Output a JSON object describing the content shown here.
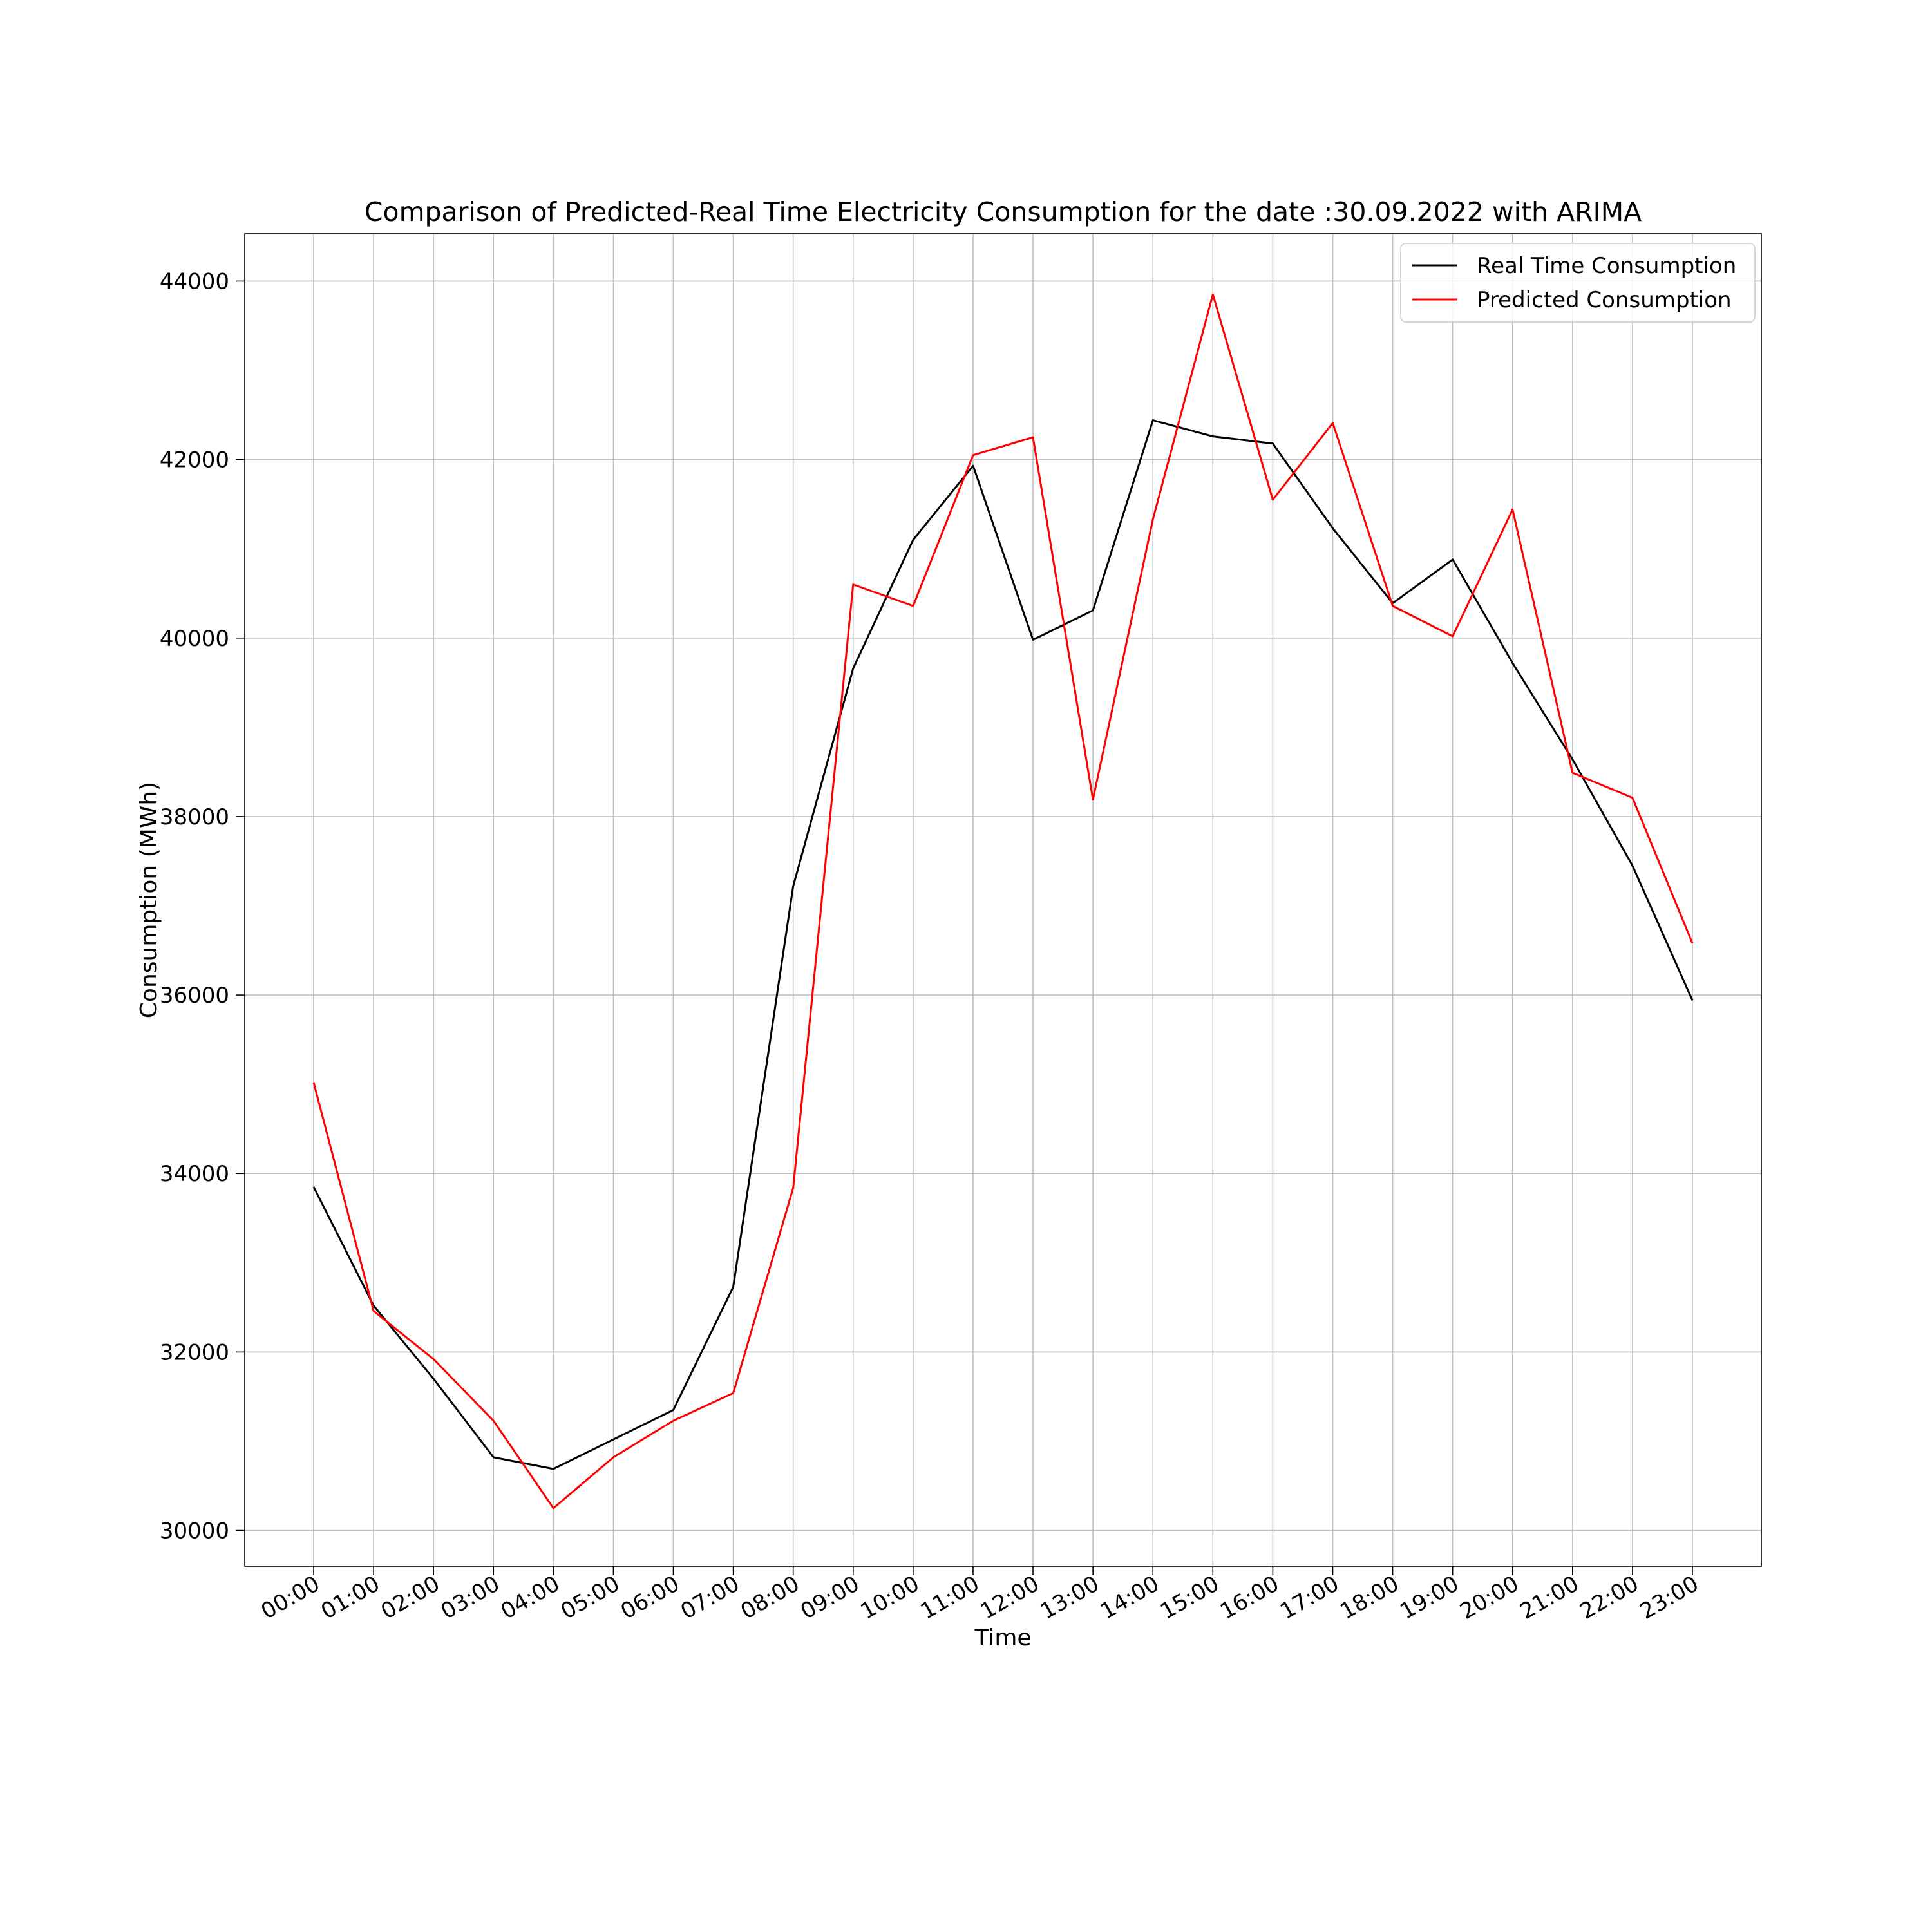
{
  "chart_data": {
    "type": "line",
    "title": "Comparison of Predicted-Real Time Electricity Consumption for the date :30.09.2022 with ARIMA",
    "xlabel": "Time",
    "ylabel": "Consumption (MWh)",
    "categories": [
      "00:00",
      "01:00",
      "02:00",
      "03:00",
      "04:00",
      "05:00",
      "06:00",
      "07:00",
      "08:00",
      "09:00",
      "10:00",
      "11:00",
      "12:00",
      "13:00",
      "14:00",
      "15:00",
      "16:00",
      "17:00",
      "18:00",
      "19:00",
      "20:00",
      "21:00",
      "22:00",
      "23:00"
    ],
    "yticks": [
      30000,
      32000,
      34000,
      36000,
      38000,
      40000,
      42000,
      44000
    ],
    "ytick_labels": [
      "30000",
      "32000",
      "34000",
      "36000",
      "38000",
      "40000",
      "42000",
      "44000"
    ],
    "ylim": [
      29600,
      44530
    ],
    "grid": true,
    "legend_position": "top-right",
    "series": [
      {
        "name": "Real Time Consumption",
        "color": "#000000",
        "values": [
          33850,
          32520,
          31700,
          30820,
          30690,
          31020,
          31350,
          32730,
          37220,
          39660,
          41100,
          41930,
          39980,
          40310,
          42440,
          42260,
          42180,
          41230,
          40390,
          40880,
          39720,
          38640,
          37450,
          35940
        ]
      },
      {
        "name": "Predicted Consumption",
        "color": "#ff0000",
        "values": [
          35020,
          32460,
          31920,
          31230,
          30250,
          30820,
          31230,
          31540,
          33840,
          40600,
          40360,
          42050,
          42250,
          38190,
          41330,
          43850,
          41550,
          42410,
          40360,
          40020,
          41440,
          38490,
          38210,
          36580
        ]
      }
    ]
  }
}
